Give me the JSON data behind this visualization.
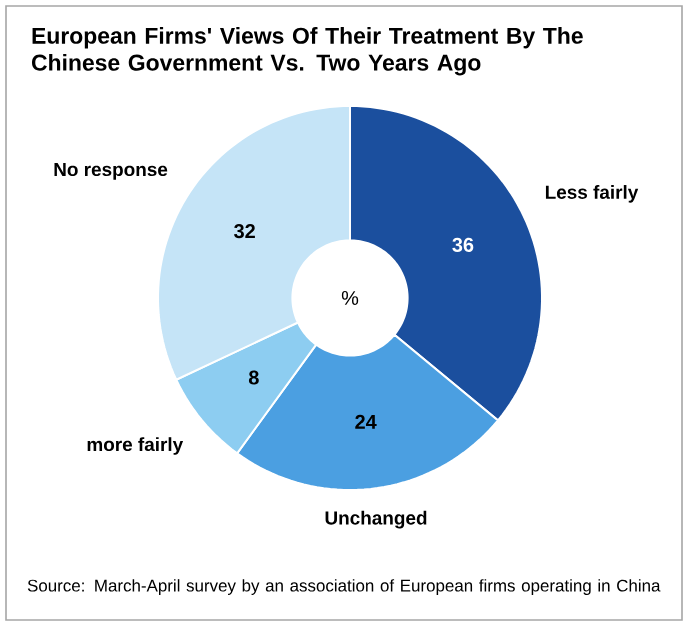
{
  "chart_data": {
    "type": "donut",
    "title": "European Firms' Views Of Their Treatment By The Chinese Government Vs. Two Years Ago",
    "categories": [
      "Less fairly",
      "Unchanged",
      "more fairly",
      "No response"
    ],
    "values": [
      36,
      24,
      8,
      32
    ],
    "colors": [
      "#1b4f9e",
      "#4b9fe1",
      "#8dcdf1",
      "#c5e4f7"
    ],
    "data_labels": true,
    "annotations": [
      "%",
      "Source: March-April survey by an association of European firms operating in China"
    ]
  }
}
